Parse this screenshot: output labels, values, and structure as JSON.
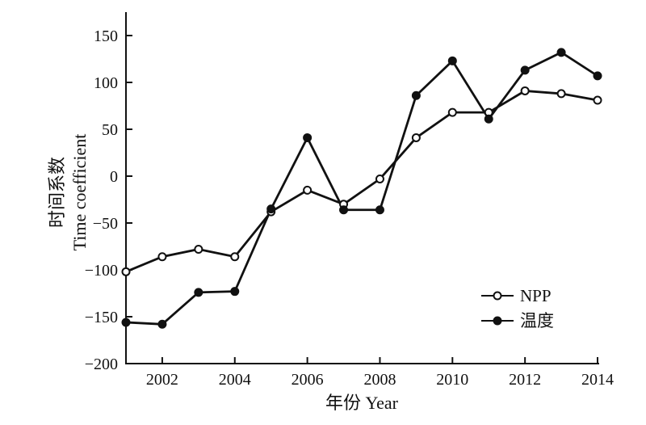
{
  "chart_data": {
    "type": "line",
    "x": [
      2001,
      2002,
      2003,
      2004,
      2005,
      2006,
      2007,
      2008,
      2009,
      2010,
      2011,
      2012,
      2013,
      2014
    ],
    "series": [
      {
        "name": "NPP",
        "marker": "open-circle",
        "color": "#111111",
        "values": [
          -102,
          -86,
          -78,
          -86,
          -38,
          -15,
          -30,
          -3,
          41,
          68,
          68,
          91,
          88,
          81
        ]
      },
      {
        "name": "温度",
        "marker": "filled-circle",
        "color": "#111111",
        "values": [
          -156,
          -158,
          -124,
          -123,
          -35,
          41,
          -36,
          -36,
          86,
          123,
          61,
          113,
          132,
          107
        ]
      }
    ],
    "xlabel": "年份 Year",
    "ylabel_line1": "时间系数",
    "ylabel_line2": "Time coefficient",
    "xlim": [
      2001,
      2014
    ],
    "ylim": [
      -200,
      175
    ],
    "x_ticks": [
      "2002",
      "2004",
      "2006",
      "2008",
      "2010",
      "2012",
      "2014"
    ],
    "y_ticks": [
      "150",
      "100",
      "50",
      "0",
      "−50",
      "−100",
      "−150",
      "−200"
    ],
    "legend_position": "bottom-right",
    "grid": false
  }
}
